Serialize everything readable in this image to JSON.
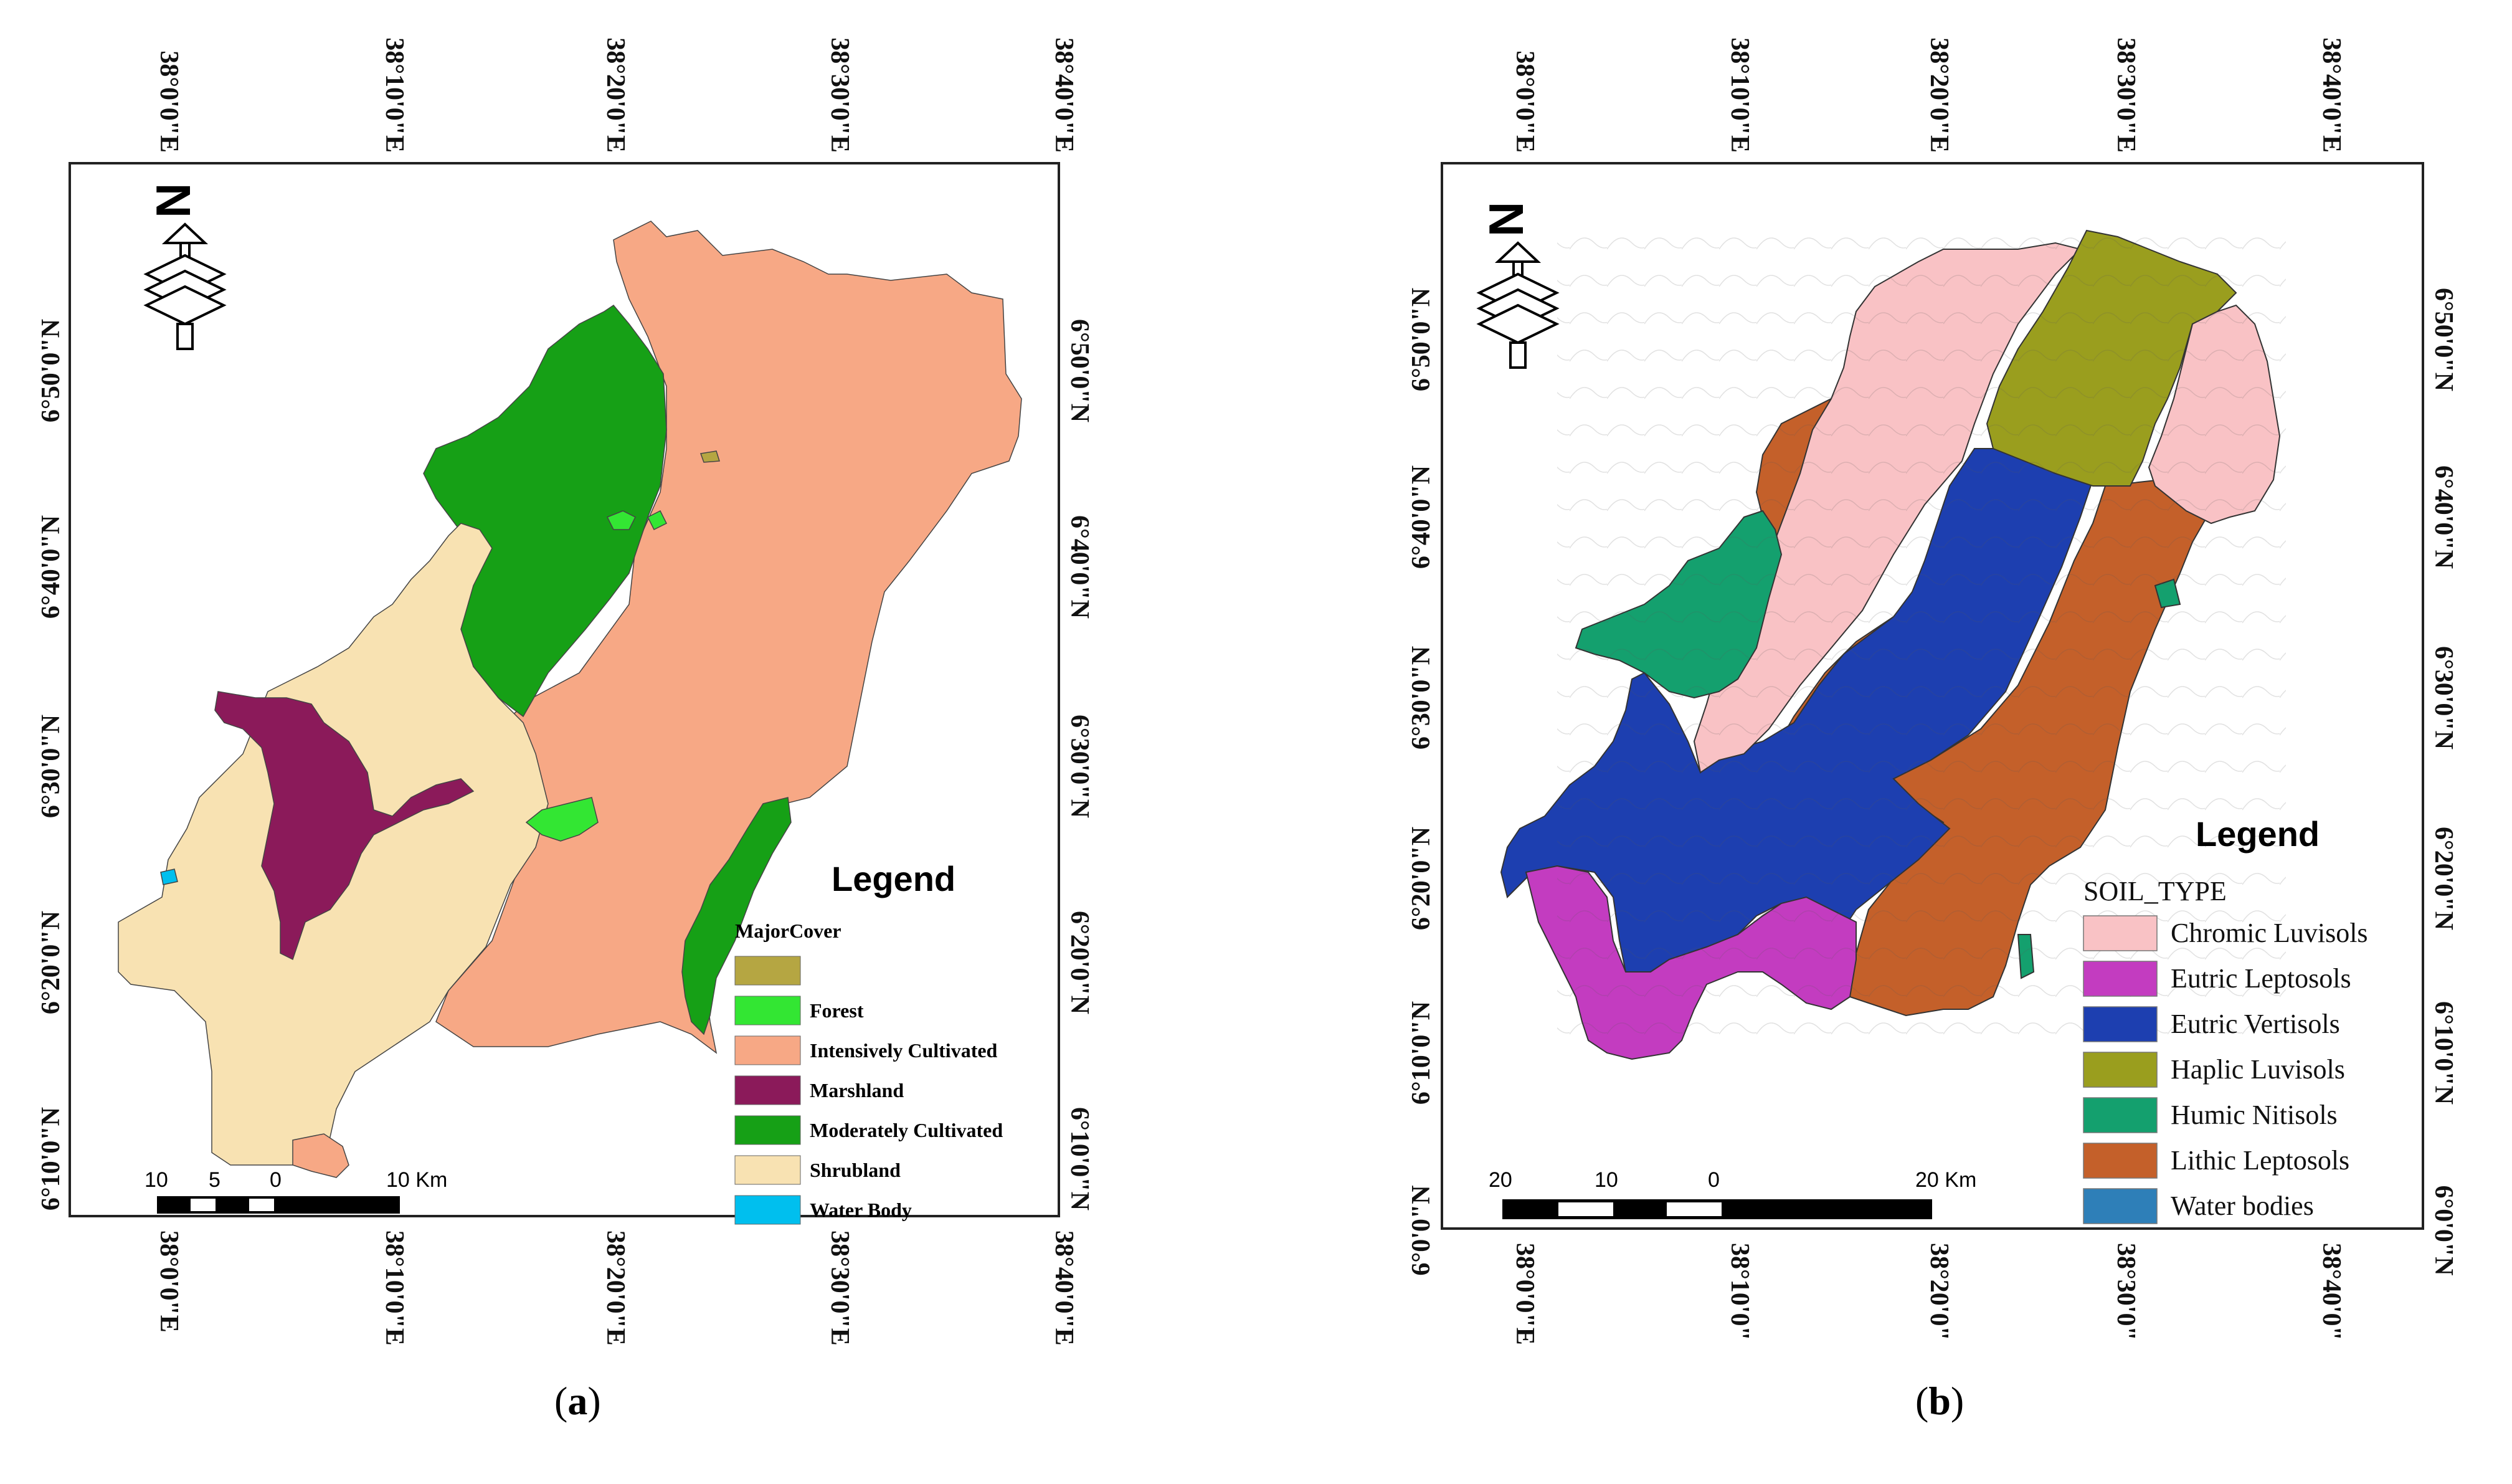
{
  "panel_a": {
    "caption_open": "(",
    "caption_letter": "a",
    "caption_close": ")",
    "top_ticks": [
      "38°0'0\"E",
      "38°10'0\"E",
      "38°20'0\"E",
      "38°30'0\"E",
      "38°40'0\"E"
    ],
    "bottom_ticks": [
      "38°0'0\"E",
      "38°10'0\"E",
      "38°20'0\"E",
      "38°30'0\"E",
      "38°40'0\"E"
    ],
    "left_ticks": [
      "6°10'0\"N",
      "6°20'0\"N",
      "6°30'0\"N",
      "6°40'0\"N",
      "6°50'0\"N"
    ],
    "right_ticks": [
      "6°10'0\"N",
      "6°20'0\"N",
      "6°30'0\"N",
      "6°40'0\"N",
      "6°50'0\"N"
    ],
    "legend": {
      "title": "Legend",
      "subtitle": "MajorCover",
      "items": [
        {
          "label": "",
          "color": "#b5a642"
        },
        {
          "label": "Forest",
          "color": "#33e633"
        },
        {
          "label": "Intensively Cultivated",
          "color": "#f7a885"
        },
        {
          "label": "Marshland",
          "color": "#8b1a5a"
        },
        {
          "label": "Moderately Cultivated",
          "color": "#16a016"
        },
        {
          "label": "Shrubland",
          "color": "#f8e2b2"
        },
        {
          "label": "Water Body",
          "color": "#00bfee"
        }
      ]
    },
    "scale_labels": [
      "10",
      "5",
      "0",
      "10 Km"
    ]
  },
  "panel_b": {
    "caption_open": "(",
    "caption_letter": "b",
    "caption_close": ")",
    "top_ticks": [
      "38°0'0\"E",
      "38°10'0\"E",
      "38°20'0\"E",
      "38°30'0\"E",
      "38°40'0\"E"
    ],
    "bottom_ticks": [
      "38°0'0\"E",
      "38°10'0\"",
      "38°20'0\"",
      "38°30'0\"",
      "38°40'0\""
    ],
    "left_ticks": [
      "6°0'0\"N",
      "6°10'0\"N",
      "6°20'0\"N",
      "6°30'0\"N",
      "6°40'0\"N",
      "6°50'0\"N"
    ],
    "right_ticks": [
      "6°0'0\"N",
      "6°10'0\"N",
      "6°20'0\"N",
      "6°30'0\"N",
      "6°40'0\"N",
      "6°50'0\"N"
    ],
    "legend": {
      "title": "Legend",
      "subtitle": "SOIL_TYPE",
      "items": [
        {
          "label": "Chromic Luvisols",
          "color": "#f9c2c5"
        },
        {
          "label": "Eutric Leptosols",
          "color": "#c33cc0"
        },
        {
          "label": "Eutric Vertisols",
          "color": "#1d3fb0"
        },
        {
          "label": "Haplic Luvisols",
          "color": "#9a9e1e"
        },
        {
          "label": "Humic Nitisols",
          "color": "#14a06e"
        },
        {
          "label": "Lithic Leptosols",
          "color": "#c4602a"
        },
        {
          "label": "Water bodies",
          "color": "#2e7fb8"
        }
      ]
    },
    "scale_labels": [
      "20",
      "10",
      "0",
      "20 Km"
    ]
  }
}
